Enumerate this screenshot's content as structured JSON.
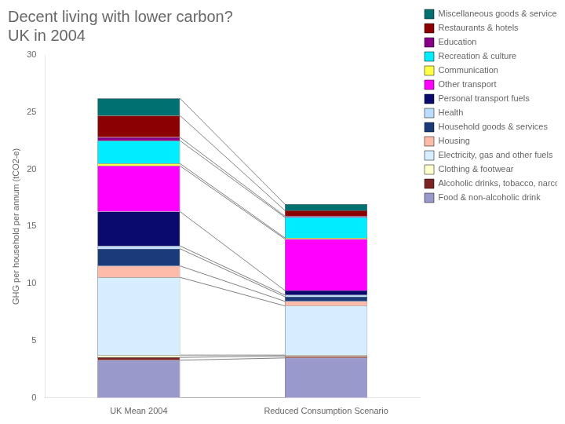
{
  "chart_data": {
    "type": "bar",
    "title": "Decent living with lower carbon?\nUK in 2004",
    "ylabel": "GHG per household per annum (tCO2-e)",
    "categories": [
      "UK Mean 2004",
      "Reduced Consumption Scenario"
    ],
    "stacked": true,
    "grid": false,
    "legend": "right",
    "ylim": [
      0,
      30
    ],
    "yticks": [
      0,
      5,
      10,
      15,
      20,
      25,
      30
    ],
    "series": [
      {
        "name": "Food & non-alcoholic drink",
        "color": "#9999cc",
        "values": [
          3.3,
          3.5
        ]
      },
      {
        "name": "Alcoholic drinks, tobacco, narcotics",
        "color": "#7b2222",
        "values": [
          0.25,
          0.15
        ]
      },
      {
        "name": "Clothing & footwear",
        "color": "#ffffcc",
        "values": [
          0.2,
          0.1
        ]
      },
      {
        "name": "Electricity, gas and other fuels",
        "color": "#d6eeff",
        "values": [
          6.8,
          4.3
        ]
      },
      {
        "name": "Housing",
        "color": "#ffbbaa",
        "values": [
          1.0,
          0.4
        ]
      },
      {
        "name": "Household goods & services",
        "color": "#1a3a7a",
        "values": [
          1.5,
          0.4
        ]
      },
      {
        "name": "Health",
        "color": "#bbddff",
        "values": [
          0.25,
          0.15
        ]
      },
      {
        "name": "Personal transport fuels",
        "color": "#0a0a6e",
        "values": [
          3.0,
          0.4
        ]
      },
      {
        "name": "Other transport",
        "color": "#ff00ff",
        "values": [
          4.0,
          4.5
        ]
      },
      {
        "name": "Communication",
        "color": "#ffff44",
        "values": [
          0.2,
          0.1
        ]
      },
      {
        "name": "Recreation & culture",
        "color": "#00eeff",
        "values": [
          2.0,
          1.8
        ]
      },
      {
        "name": "Education",
        "color": "#880088",
        "values": [
          0.3,
          0.1
        ]
      },
      {
        "name": "Restaurants & hotels",
        "color": "#8b0000",
        "values": [
          1.9,
          0.5
        ]
      },
      {
        "name": "Miscellaneous goods & services",
        "color": "#007070",
        "values": [
          1.5,
          0.55
        ]
      }
    ]
  }
}
